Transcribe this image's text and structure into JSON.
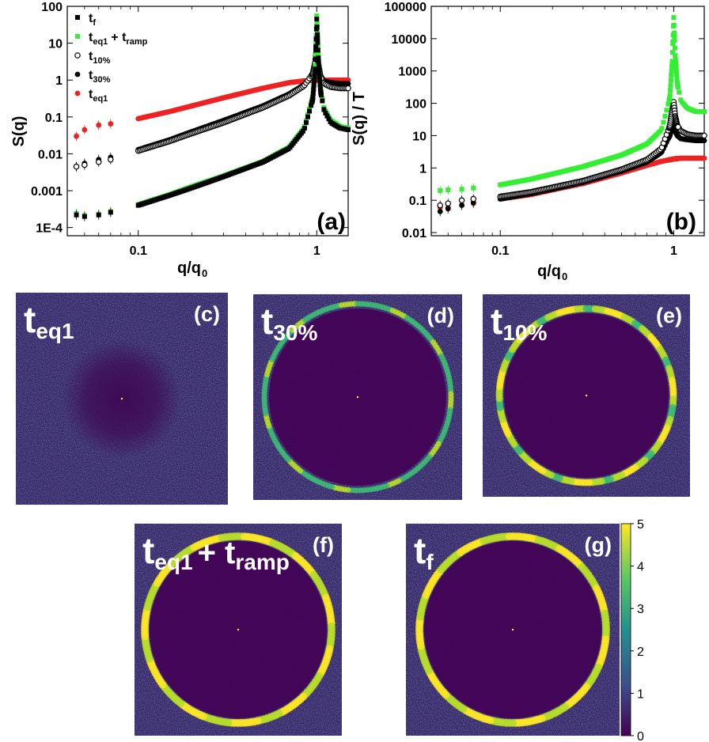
{
  "chart_data": [
    {
      "type": "scatter",
      "panel": "(a)",
      "xlabel_main": "q/q",
      "xlabel_sub": "0",
      "ylabel": "S(q)",
      "xscale": "log",
      "yscale": "log",
      "xlim": [
        0.04,
        1.5
      ],
      "ylim": [
        6e-05,
        100
      ],
      "x_ticks": [
        {
          "v": 0.1,
          "label": "0.1"
        },
        {
          "v": 1,
          "label": "1"
        }
      ],
      "y_ticks": [
        {
          "v": 0.0001,
          "label": "1E-4"
        },
        {
          "v": 0.001,
          "label": "0.001"
        },
        {
          "v": 0.01,
          "label": "0.01"
        },
        {
          "v": 0.1,
          "label": "0.1"
        },
        {
          "v": 1,
          "label": "1"
        },
        {
          "v": 10,
          "label": "10"
        },
        {
          "v": 100,
          "label": "100"
        }
      ],
      "legend_position": "top-left",
      "series": [
        {
          "key": "tf",
          "legend_main": "t",
          "legend_sub": "f",
          "color": "#000000",
          "marker": "square",
          "x": [
            0.045,
            0.05,
            0.06,
            0.07,
            0.1,
            0.15,
            0.2,
            0.3,
            0.5,
            0.7,
            0.85,
            0.95,
            0.98,
            1.0,
            1.02,
            1.05,
            1.1,
            1.2,
            1.35,
            1.5
          ],
          "y": [
            0.00022,
            0.0002,
            0.00022,
            0.00026,
            0.0004,
            0.00075,
            0.0012,
            0.0024,
            0.006,
            0.014,
            0.045,
            0.3,
            2,
            45,
            4,
            0.5,
            0.15,
            0.07,
            0.05,
            0.045
          ]
        },
        {
          "key": "teq1ramp",
          "legend_main": "t",
          "legend_sub": "eq1",
          "legend_plus": "+ t",
          "legend_sub2": "ramp",
          "color": "#33ee33",
          "marker": "square",
          "x": [
            0.045,
            0.05,
            0.06,
            0.07,
            0.1,
            0.15,
            0.2,
            0.3,
            0.5,
            0.7,
            0.85,
            0.95,
            0.98,
            1.0,
            1.02,
            1.05,
            1.1,
            1.2,
            1.35,
            1.5
          ],
          "y": [
            0.00024,
            0.00021,
            0.00023,
            0.00027,
            0.00042,
            0.00078,
            0.0013,
            0.0025,
            0.0062,
            0.015,
            0.05,
            0.35,
            2.5,
            55,
            5,
            0.6,
            0.17,
            0.08,
            0.055,
            0.05
          ]
        },
        {
          "key": "t10",
          "legend_main": "t",
          "legend_sub": "10%",
          "color": "#000000",
          "marker": "circle-open",
          "x": [
            0.045,
            0.05,
            0.06,
            0.07,
            0.1,
            0.15,
            0.2,
            0.3,
            0.5,
            0.7,
            0.85,
            0.95,
            0.98,
            1.0,
            1.02,
            1.05,
            1.1,
            1.2,
            1.35,
            1.5
          ],
          "y": [
            0.0045,
            0.005,
            0.006,
            0.007,
            0.012,
            0.022,
            0.036,
            0.07,
            0.18,
            0.38,
            0.7,
            1.5,
            3,
            8,
            3,
            1.2,
            0.8,
            0.65,
            0.6,
            0.6
          ]
        },
        {
          "key": "t30",
          "legend_main": "t",
          "legend_sub": "30%",
          "color": "#000000",
          "marker": "circle",
          "x": [
            0.045,
            0.05,
            0.06,
            0.07,
            0.1,
            0.15,
            0.2,
            0.3,
            0.5,
            0.7,
            0.85,
            0.95,
            0.98,
            1.0,
            1.02,
            1.05,
            1.1,
            1.2,
            1.35,
            1.5
          ],
          "y": [
            0.0045,
            0.0055,
            0.007,
            0.008,
            0.013,
            0.024,
            0.04,
            0.08,
            0.2,
            0.42,
            0.75,
            1.3,
            2.5,
            5,
            2.2,
            1.3,
            0.95,
            0.85,
            0.8,
            0.8
          ]
        },
        {
          "key": "teq1",
          "legend_main": "t",
          "legend_sub": "eq1",
          "color": "#ee2222",
          "marker": "circle",
          "x": [
            0.045,
            0.05,
            0.06,
            0.07,
            0.1,
            0.15,
            0.2,
            0.3,
            0.5,
            0.7,
            0.85,
            1.0,
            1.1,
            1.2,
            1.35,
            1.5
          ],
          "y": [
            0.03,
            0.045,
            0.06,
            0.065,
            0.09,
            0.14,
            0.2,
            0.33,
            0.6,
            0.85,
            0.95,
            1.0,
            1.0,
            1.0,
            1.0,
            1.0
          ]
        }
      ]
    },
    {
      "type": "scatter",
      "panel": "(b)",
      "xlabel_main": "q/q",
      "xlabel_sub": "0",
      "ylabel": "S(q) / T",
      "xscale": "log",
      "yscale": "log",
      "xlim": [
        0.04,
        1.5
      ],
      "ylim": [
        0.008,
        100000
      ],
      "x_ticks": [
        {
          "v": 0.1,
          "label": "0.1"
        },
        {
          "v": 1,
          "label": "1"
        }
      ],
      "y_ticks": [
        {
          "v": 0.01,
          "label": "0.01"
        },
        {
          "v": 0.1,
          "label": "0.1"
        },
        {
          "v": 1,
          "label": "1"
        },
        {
          "v": 10,
          "label": "10"
        },
        {
          "v": 100,
          "label": "100"
        },
        {
          "v": 1000,
          "label": "1000"
        },
        {
          "v": 10000,
          "label": "10000"
        },
        {
          "v": 100000,
          "label": "100000"
        }
      ],
      "series": [
        {
          "key": "green",
          "color": "#33ee33",
          "marker": "square",
          "x": [
            0.045,
            0.05,
            0.06,
            0.07,
            0.1,
            0.15,
            0.2,
            0.3,
            0.5,
            0.7,
            0.85,
            0.95,
            0.98,
            1.0,
            1.02,
            1.05,
            1.1,
            1.2,
            1.35,
            1.5
          ],
          "y": [
            0.2,
            0.21,
            0.22,
            0.24,
            0.3,
            0.45,
            0.65,
            1.1,
            2.5,
            5.5,
            15,
            150,
            2000,
            45000,
            3000,
            400,
            120,
            70,
            55,
            55
          ]
        },
        {
          "key": "black-open",
          "color": "#000000",
          "marker": "circle-open",
          "x": [
            0.045,
            0.05,
            0.06,
            0.07,
            0.1,
            0.15,
            0.2,
            0.3,
            0.5,
            0.7,
            0.85,
            0.95,
            0.98,
            1.0,
            1.02,
            1.05,
            1.1,
            1.2,
            1.35,
            1.5
          ],
          "y": [
            0.07,
            0.08,
            0.1,
            0.11,
            0.13,
            0.18,
            0.25,
            0.4,
            0.9,
            1.8,
            4,
            20,
            60,
            110,
            40,
            20,
            14,
            11,
            10,
            10
          ]
        },
        {
          "key": "black",
          "color": "#000000",
          "marker": "circle",
          "x": [
            0.045,
            0.05,
            0.06,
            0.07,
            0.1,
            0.15,
            0.2,
            0.3,
            0.5,
            0.7,
            0.85,
            0.95,
            0.98,
            1.0,
            1.02,
            1.05,
            1.1,
            1.2,
            1.35,
            1.5
          ],
          "y": [
            0.045,
            0.055,
            0.07,
            0.085,
            0.11,
            0.16,
            0.22,
            0.36,
            0.8,
            1.5,
            3,
            10,
            18,
            22,
            14,
            10,
            8,
            7.5,
            7,
            7
          ]
        },
        {
          "key": "red",
          "color": "#ee2222",
          "marker": "circle",
          "x": [
            0.045,
            0.05,
            0.06,
            0.07,
            0.1,
            0.15,
            0.2,
            0.3,
            0.5,
            0.7,
            0.85,
            1.0,
            1.1,
            1.2,
            1.35,
            1.5
          ],
          "y": [
            0.06,
            0.06,
            0.07,
            0.08,
            0.11,
            0.15,
            0.21,
            0.33,
            0.7,
            1.2,
            1.6,
            1.9,
            2.0,
            2.0,
            2.0,
            2.0
          ]
        }
      ]
    },
    {
      "type": "heatmap",
      "colorscale": "viridis",
      "colorbar": {
        "ticks": [
          {
            "v": 0,
            "label": "0"
          },
          {
            "v": 1,
            "label": "1"
          },
          {
            "v": 2,
            "label": "2"
          },
          {
            "v": 3,
            "label": "3"
          },
          {
            "v": 4,
            "label": "4"
          },
          {
            "v": 5,
            "label": "5"
          }
        ],
        "range": [
          0,
          5
        ]
      },
      "panels": [
        {
          "letter": "(c)",
          "label_main": "t",
          "label_sub": "eq1",
          "ring_intensity": 0.0
        },
        {
          "letter": "(d)",
          "label_main": "t",
          "label_sub": "30%",
          "ring_intensity": 0.55
        },
        {
          "letter": "(e)",
          "label_main": "t",
          "label_sub": "10%",
          "ring_intensity": 0.85
        },
        {
          "letter": "(f)",
          "label_main": "t",
          "label_sub": "eq1",
          "label_plus": "+ t",
          "label_sub2": "ramp",
          "ring_intensity": 1.0
        },
        {
          "letter": "(g)",
          "label_main": "t",
          "label_sub": "f",
          "ring_intensity": 1.0
        }
      ]
    }
  ]
}
